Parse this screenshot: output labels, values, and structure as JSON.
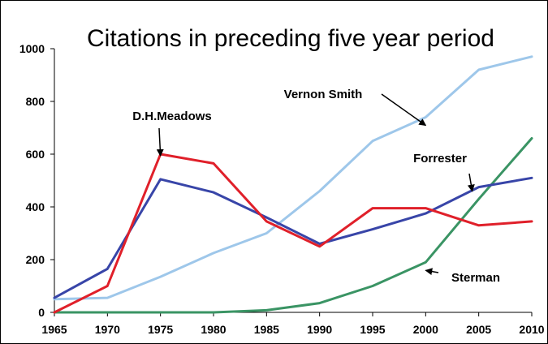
{
  "chart_data": {
    "type": "line",
    "title": "Citations in preceding five year period",
    "xlabel": "",
    "ylabel": "",
    "x": [
      1965,
      1970,
      1975,
      1980,
      1985,
      1990,
      1995,
      2000,
      2005,
      2010
    ],
    "xlim": [
      1965,
      2010
    ],
    "ylim": [
      0,
      1000
    ],
    "yticks": [
      0,
      200,
      400,
      600,
      800,
      1000
    ],
    "grid": false,
    "legend": "none (series labelled by annotations with arrows)",
    "series": [
      {
        "name": "Vernon Smith",
        "color": "#9ec7ea",
        "values": [
          50,
          55,
          135,
          225,
          300,
          460,
          650,
          740,
          920,
          970
        ]
      },
      {
        "name": "D.H.Meadows",
        "color": "#e0202a",
        "values": [
          0,
          100,
          600,
          565,
          345,
          250,
          395,
          395,
          330,
          345
        ]
      },
      {
        "name": "Forrester",
        "color": "#3845a8",
        "values": [
          55,
          165,
          505,
          455,
          360,
          260,
          315,
          375,
          475,
          510
        ]
      },
      {
        "name": "Sterman",
        "color": "#3a9464",
        "values": [
          0,
          0,
          0,
          0,
          8,
          35,
          100,
          190,
          430,
          660
        ]
      }
    ],
    "annotations": [
      {
        "text": "Vernon Smith",
        "series": "Vernon Smith",
        "at_x": 2000
      },
      {
        "text": "D.H.Meadows",
        "series": "D.H.Meadows",
        "at_x": 1975
      },
      {
        "text": "Forrester",
        "series": "Forrester",
        "at_x": 2005
      },
      {
        "text": "Sterman",
        "series": "Sterman",
        "at_x": 2000
      }
    ]
  }
}
